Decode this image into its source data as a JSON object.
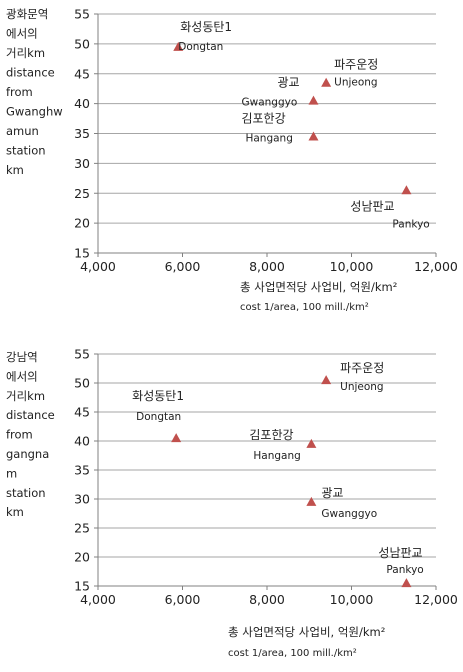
{
  "chart_data": [
    {
      "type": "scatter",
      "ylabel_lines": [
        "광화문역",
        "에서의",
        "거리km",
        "distance",
        "from",
        "Gwanghw",
        "amun",
        " station",
        "km"
      ],
      "xlabel_lines": [
        "총 사업면적당 사업비, 억원/km²",
        "cost 1/area, 100 mill./km²"
      ],
      "xlim": [
        4000,
        12000
      ],
      "ylim": [
        15,
        55
      ],
      "xticks": [
        4000,
        6000,
        8000,
        10000,
        12000
      ],
      "xtick_labels": [
        "4,000",
        "6,000",
        "8,000",
        "10,000",
        "12,000"
      ],
      "yticks": [
        15,
        20,
        25,
        30,
        35,
        40,
        45,
        50,
        55
      ],
      "ytick_labels": [
        "15",
        "20",
        "25",
        "30",
        "35",
        "40",
        "45",
        "50",
        "55"
      ],
      "grid": true,
      "marker_color": "#c0504d",
      "points": [
        {
          "x": 5900,
          "y": 49.5,
          "label_ko": "화성동탄1",
          "label_en": "Dongtan"
        },
        {
          "x": 9400,
          "y": 43.5,
          "label_ko": "파주운정",
          "label_en": "Unjeong"
        },
        {
          "x": 9100,
          "y": 40.5,
          "label_ko": "광교",
          "label_en": "Gwanggyo"
        },
        {
          "x": 9100,
          "y": 34.5,
          "label_ko": "김포한강",
          "label_en": "Hangang"
        },
        {
          "x": 11300,
          "y": 25.5,
          "label_ko": "성남판교",
          "label_en": "Pankyo"
        }
      ]
    },
    {
      "type": "scatter",
      "ylabel_lines": [
        "강남역",
        "에서의",
        "거리km",
        "distance",
        "from",
        "gangna",
        "m",
        "station",
        "km"
      ],
      "xlabel_lines": [
        "총 사업면적당 사업비, 억원/km²",
        "cost 1/area, 100 mill./km²"
      ],
      "xlim": [
        4000,
        12000
      ],
      "ylim": [
        15,
        55
      ],
      "xticks": [
        4000,
        6000,
        8000,
        10000,
        12000
      ],
      "xtick_labels": [
        "4,000",
        "6,000",
        "8,000",
        "10,000",
        "12,000"
      ],
      "yticks": [
        15,
        20,
        25,
        30,
        35,
        40,
        45,
        50,
        55
      ],
      "ytick_labels": [
        "15",
        "20",
        "25",
        "30",
        "35",
        "40",
        "45",
        "50",
        "55"
      ],
      "grid": true,
      "marker_color": "#c0504d",
      "points": [
        {
          "x": 5850,
          "y": 40.5,
          "label_ko": "화성동탄1",
          "label_en": "Dongtan"
        },
        {
          "x": 9400,
          "y": 50.5,
          "label_ko": "파주운정",
          "label_en": "Unjeong"
        },
        {
          "x": 9050,
          "y": 39.5,
          "label_ko": "김포한강",
          "label_en": "Hangang"
        },
        {
          "x": 9050,
          "y": 29.5,
          "label_ko": "광교",
          "label_en": "Gwanggyo"
        },
        {
          "x": 11300,
          "y": 15.5,
          "label_ko": "성남판교",
          "label_en": "Pankyo"
        }
      ]
    }
  ]
}
